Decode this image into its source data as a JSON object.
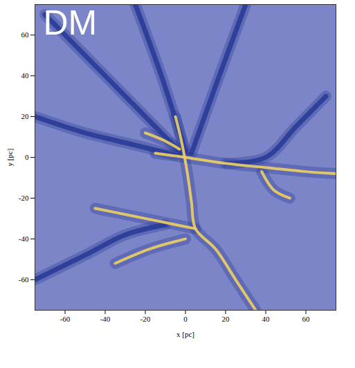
{
  "chart_data": {
    "type": "line",
    "annotations": [
      "DM"
    ],
    "xlabel": "x [pc]",
    "ylabel": "y [pc]",
    "xlim": [
      -75,
      75
    ],
    "ylim": [
      -75,
      75
    ],
    "xticks": [
      -60,
      -40,
      -20,
      0,
      20,
      40,
      60
    ],
    "yticks": [
      -60,
      -40,
      -20,
      0,
      20,
      40,
      60
    ],
    "grid": false,
    "series": [
      {
        "color": "#2a3c98",
        "x": [
          -70,
          -45,
          -20,
          -2
        ],
        "values": [
          70,
          45,
          20,
          2
        ]
      },
      {
        "color": "#2a3c98",
        "x": [
          -25,
          -12,
          0
        ],
        "values": [
          75,
          40,
          3
        ]
      },
      {
        "color": "#2a3c98",
        "x": [
          -75,
          -50,
          -25,
          -5
        ],
        "values": [
          20,
          12,
          6,
          1
        ]
      },
      {
        "color": "#2a3c98",
        "x": [
          30,
          15,
          3
        ],
        "values": [
          75,
          35,
          2
        ]
      },
      {
        "color": "#2a3c98",
        "x": [
          -75,
          -50,
          -30,
          -10
        ],
        "values": [
          -60,
          -48,
          -38,
          -33
        ]
      },
      {
        "color": "#2a3c98",
        "x": [
          70,
          55,
          40,
          20
        ],
        "values": [
          30,
          15,
          0,
          -3
        ]
      },
      {
        "color": "#f0d060",
        "x": [
          -5,
          -2,
          1,
          3,
          5,
          15,
          25,
          35
        ],
        "values": [
          20,
          8,
          -8,
          -22,
          -35,
          -45,
          -60,
          -75
        ]
      },
      {
        "color": "#f0d060",
        "x": [
          -15,
          0,
          20,
          40,
          60,
          75
        ],
        "values": [
          2,
          0,
          -3,
          -5,
          -7,
          -8
        ]
      },
      {
        "color": "#f0d060",
        "x": [
          5,
          -10,
          -30,
          -45
        ],
        "values": [
          -35,
          -32,
          -28,
          -25
        ]
      },
      {
        "color": "#f0d060",
        "x": [
          38,
          44,
          52
        ],
        "values": [
          -7,
          -16,
          -20
        ]
      },
      {
        "color": "#f0d060",
        "x": [
          -35,
          -18,
          0
        ],
        "values": [
          -52,
          -45,
          -40
        ]
      },
      {
        "color": "#f0d060",
        "x": [
          -20,
          -10,
          -3
        ],
        "values": [
          12,
          8,
          4
        ]
      }
    ]
  }
}
